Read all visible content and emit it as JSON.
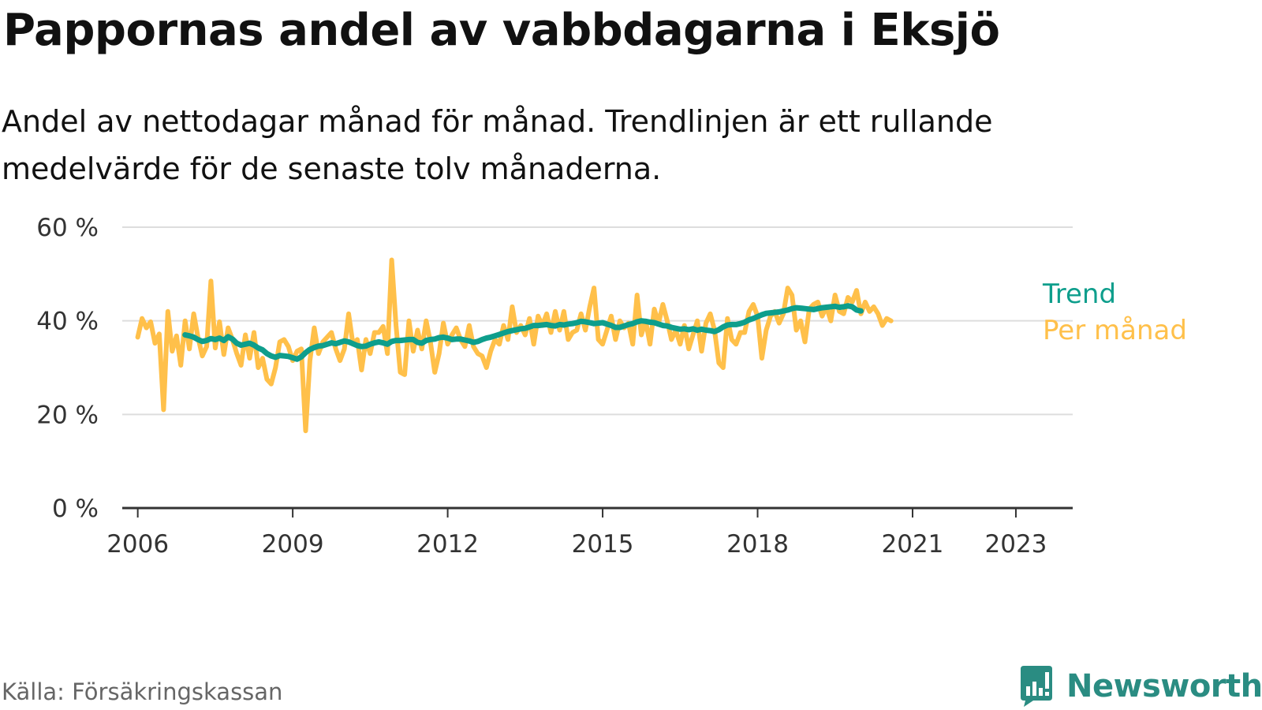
{
  "title": "Pappornas andel av vabbdagarna i Eksjö",
  "subtitle": "Andel av nettodagar månad för månad. Trendlinjen är ett rullande medelvärde för de senaste tolv månaderna.",
  "source": "Källa: Försäkringskassan",
  "brand": {
    "name": "Newsworthy",
    "icon": "newsworthy-logo-icon",
    "color": "#2a8c82"
  },
  "chart_data": {
    "type": "line",
    "title": "Pappornas andel av vabbdagarna i Eksjö",
    "ylabel": "",
    "xlabel": "",
    "ylim": [
      0,
      60
    ],
    "xlim": [
      2005.7,
      2024.1
    ],
    "y_ticks": [
      0,
      20,
      40,
      60
    ],
    "y_tick_labels": [
      "0 %",
      "20 %",
      "40 %",
      "60 %"
    ],
    "x_ticks": [
      2006,
      2009,
      2012,
      2015,
      2018,
      2021,
      2023
    ],
    "x_tick_labels": [
      "2006",
      "2009",
      "2012",
      "2015",
      "2018",
      "2021",
      "2023"
    ],
    "grid": true,
    "legend": "right",
    "x_start": 2006.0,
    "x_step": 0.08333,
    "series": [
      {
        "name": "Per månad",
        "color": "#ffc04a",
        "values": [
          36.5,
          40.5,
          38.5,
          39.8,
          35.2,
          37.2,
          21.0,
          42.0,
          33.5,
          36.8,
          30.5,
          40.0,
          34.0,
          41.5,
          36.5,
          32.5,
          34.5,
          48.5,
          34.2,
          39.8,
          32.8,
          38.5,
          36.0,
          33.0,
          30.5,
          37.0,
          32.0,
          37.5,
          30.0,
          32.0,
          27.5,
          26.5,
          30.0,
          35.5,
          36.0,
          34.5,
          31.5,
          33.5,
          34.0,
          16.5,
          31.5,
          38.5,
          33.0,
          35.5,
          36.5,
          37.5,
          34.0,
          31.5,
          34.0,
          41.5,
          35.0,
          36.0,
          29.5,
          36.0,
          33.0,
          37.5,
          37.5,
          38.8,
          33.0,
          53.0,
          39.0,
          29.0,
          28.5,
          40.0,
          33.5,
          38.0,
          34.0,
          40.0,
          35.5,
          29.0,
          33.0,
          39.5,
          35.0,
          37.0,
          38.5,
          36.0,
          34.5,
          39.0,
          34.5,
          33.0,
          32.5,
          30.0,
          33.5,
          36.0,
          35.0,
          39.0,
          36.0,
          43.0,
          37.5,
          39.0,
          37.0,
          40.5,
          35.0,
          41.0,
          39.0,
          41.5,
          37.5,
          42.0,
          38.0,
          42.0,
          36.0,
          37.5,
          38.0,
          41.5,
          38.0,
          43.0,
          47.0,
          36.0,
          35.0,
          38.0,
          41.0,
          36.0,
          40.0,
          38.5,
          39.5,
          35.0,
          45.5,
          37.0,
          40.0,
          35.0,
          42.5,
          39.5,
          43.5,
          40.0,
          36.0,
          38.0,
          35.0,
          39.0,
          34.0,
          37.0,
          40.0,
          33.5,
          39.5,
          41.5,
          38.0,
          31.0,
          30.0,
          40.5,
          36.0,
          35.0,
          37.5,
          37.5,
          42.0,
          43.5,
          41.0,
          32.0,
          38.0,
          41.0,
          42.0,
          39.5,
          41.5,
          47.0,
          45.5,
          38.0,
          40.0,
          35.5,
          42.5,
          43.5,
          44.0,
          41.0,
          43.0,
          40.0,
          45.5,
          42.0,
          41.5,
          45.0,
          44.0,
          46.5,
          41.5,
          44.0,
          42.0,
          43.0,
          41.5,
          39.0,
          40.5,
          40.0
        ]
      },
      {
        "name": "Trend",
        "color": "#0e9e8c",
        "start_index": 11,
        "values": [
          37.0,
          36.8,
          36.5,
          36.0,
          35.6,
          35.8,
          36.2,
          36.0,
          36.3,
          35.8,
          36.6,
          36.1,
          35.2,
          34.8,
          35.0,
          35.2,
          34.8,
          34.2,
          33.8,
          33.0,
          32.5,
          32.2,
          32.6,
          32.5,
          32.4,
          32.1,
          31.8,
          32.3,
          33.2,
          33.9,
          34.3,
          34.6,
          34.7,
          35.0,
          35.3,
          35.1,
          35.4,
          35.7,
          35.5,
          35.1,
          34.7,
          34.5,
          34.6,
          35.0,
          35.3,
          35.5,
          35.3,
          35.0,
          35.6,
          35.8,
          35.8,
          35.9,
          36.0,
          36.0,
          35.4,
          35.2,
          35.8,
          36.0,
          36.1,
          36.4,
          36.5,
          36.3,
          36.0,
          36.1,
          36.1,
          35.9,
          35.7,
          35.4,
          35.6,
          36.0,
          36.3,
          36.5,
          36.8,
          37.1,
          37.4,
          37.7,
          37.9,
          38.1,
          38.3,
          38.4,
          38.7,
          39.0,
          39.0,
          39.1,
          39.2,
          39.0,
          38.9,
          39.2,
          39.1,
          39.3,
          39.4,
          39.6,
          39.9,
          39.8,
          39.6,
          39.4,
          39.5,
          39.6,
          39.3,
          39.0,
          38.6,
          38.6,
          38.9,
          39.2,
          39.4,
          39.8,
          40.0,
          39.9,
          39.7,
          39.6,
          39.3,
          39.0,
          38.9,
          38.6,
          38.4,
          38.2,
          38.3,
          38.1,
          38.3,
          38.0,
          38.2,
          38.0,
          37.9,
          37.7,
          38.1,
          38.7,
          39.1,
          39.2,
          39.2,
          39.4,
          39.7,
          40.2,
          40.5,
          40.9,
          41.3,
          41.6,
          41.7,
          41.8,
          41.9,
          42.1,
          42.3,
          42.6,
          42.8,
          42.7,
          42.6,
          42.5,
          42.4,
          42.6,
          42.8,
          42.9,
          43.0,
          43.1,
          42.9,
          43.0,
          43.2,
          43.0,
          42.3,
          42.1
        ]
      }
    ],
    "gridline_color": "#dddddd",
    "axis_color": "#333333"
  }
}
